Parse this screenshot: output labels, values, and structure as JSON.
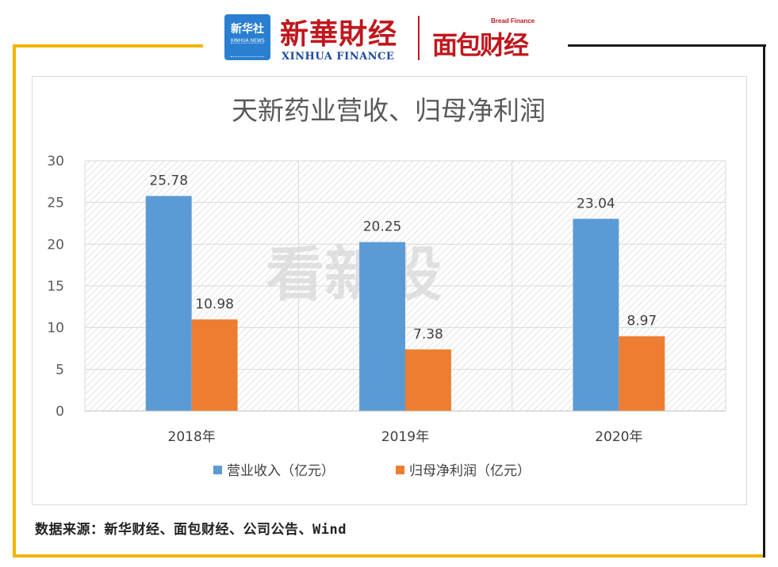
{
  "header": {
    "xinhua_cn": "新华社",
    "xinhua_en": "XINHUA NEWS",
    "finance_cn": "新華財经",
    "finance_en": "XINHUA FINANCE",
    "bread_en": "Bread Finance",
    "bread_cn": "面包财经"
  },
  "watermark": "看新股",
  "source": "数据来源：新华财经、面包财经、公司公告、Wind",
  "chart_data": {
    "type": "bar",
    "title": "天新药业营收、归母净利润",
    "categories": [
      "2018年",
      "2019年",
      "2020年"
    ],
    "series": [
      {
        "name": "营业收入（亿元）",
        "values": [
          25.78,
          20.25,
          23.04
        ],
        "color": "#5b9bd5"
      },
      {
        "name": "归母净利润（亿元）",
        "values": [
          10.98,
          7.38,
          8.97
        ],
        "color": "#ed7d31"
      }
    ],
    "ylim": [
      0,
      30
    ],
    "yticks": [
      "0",
      "5",
      "10",
      "15",
      "20",
      "25",
      "30"
    ],
    "data_labels": [
      [
        "25.78",
        "20.25",
        "23.04"
      ],
      [
        "10.98",
        "7.38",
        "8.97"
      ]
    ],
    "grid": true,
    "legend_position": "bottom"
  }
}
